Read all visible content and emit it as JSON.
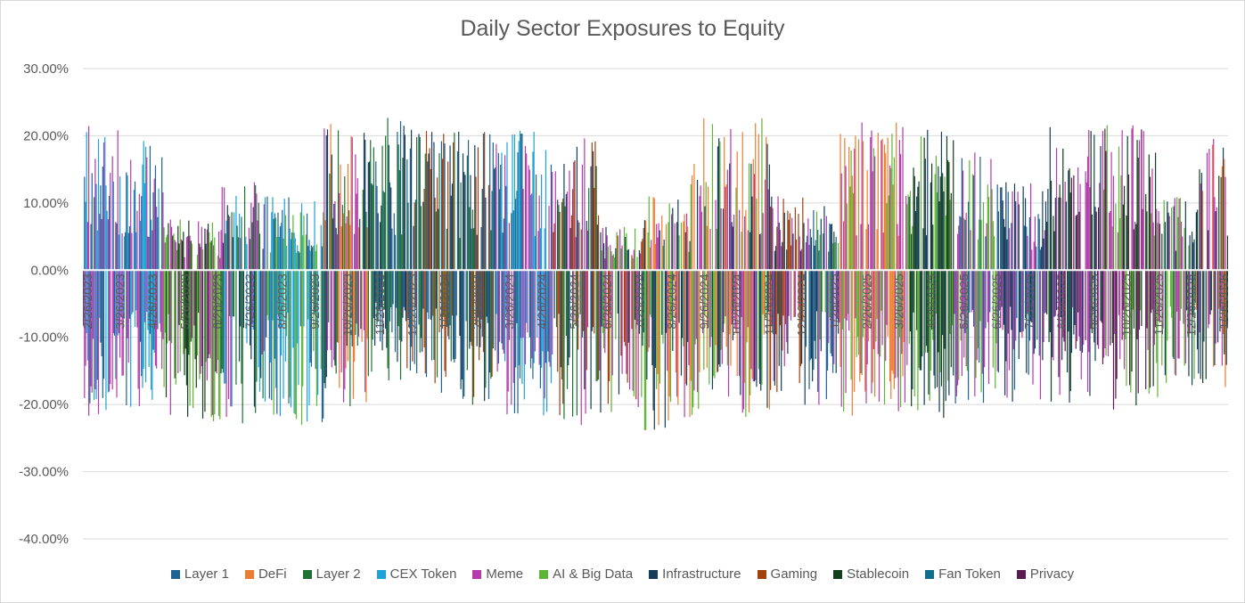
{
  "chart_data": {
    "type": "bar",
    "title": "Daily Sector Exposures to Equity",
    "xlabel": "",
    "ylabel": "",
    "ylim": [
      -0.4,
      0.3
    ],
    "yticks": [
      "30.00%",
      "20.00%",
      "10.00%",
      "0.00%",
      "-10.00%",
      "-20.00%",
      "-30.00%",
      "-40.00%"
    ],
    "ytick_values": [
      0.3,
      0.2,
      0.1,
      0.0,
      -0.1,
      -0.2,
      -0.3,
      -0.4
    ],
    "x_tick_labels": [
      "2/26/2023",
      "3/26/2023",
      "4/26/2023",
      "5/26/2023",
      "6/26/2023",
      "7/26/2023",
      "8/26/2023",
      "9/26/2023",
      "10/26/2023",
      "11/26/2023",
      "12/26/2023",
      "1/26/2024",
      "2/26/2024",
      "3/26/2024",
      "4/26/2024",
      "5/26/2024",
      "6/26/2024",
      "7/26/2024",
      "8/26/2024",
      "9/26/2024",
      "10/26/2024",
      "11/26/2024",
      "12/26/2024",
      "1/26/2025",
      "2/26/2025",
      "3/26/2025",
      "4/26/2025",
      "5/26/2025",
      "6/26/2025",
      "7/26/2025",
      "8/26/2025",
      "9/26/2025",
      "10/26/2025",
      "11/26/2025",
      "12/26/2025",
      "1/26/2026"
    ],
    "x_range": [
      "2/26/2023",
      "1/26/2026"
    ],
    "series": [
      {
        "name": "Layer 1",
        "color": "#1f6391"
      },
      {
        "name": "DeFi",
        "color": "#ed7d31"
      },
      {
        "name": "Layer 2",
        "color": "#1e7233"
      },
      {
        "name": "CEX Token",
        "color": "#1ea2d8"
      },
      {
        "name": "Meme",
        "color": "#b53bad"
      },
      {
        "name": "AI & Big Data",
        "color": "#5db535"
      },
      {
        "name": "Infrastructure",
        "color": "#153e5c"
      },
      {
        "name": "Gaming",
        "color": "#a1420f"
      },
      {
        "name": "Stablecoin",
        "color": "#133f1c"
      },
      {
        "name": "Fan Token",
        "color": "#0f6d8e"
      },
      {
        "name": "Privacy",
        "color": "#5c1a52"
      }
    ],
    "dominant_segments": [
      {
        "from": 0.0,
        "to": 0.03,
        "series": [
          0,
          3,
          4
        ],
        "pos": 0.2,
        "neg": -0.2
      },
      {
        "from": 0.03,
        "to": 0.07,
        "series": [
          3,
          0,
          4
        ],
        "pos": 0.19,
        "neg": -0.19
      },
      {
        "from": 0.07,
        "to": 0.12,
        "series": [
          5,
          8,
          4
        ],
        "pos": 0.07,
        "neg": -0.21
      },
      {
        "from": 0.12,
        "to": 0.16,
        "series": [
          2,
          6,
          4,
          3
        ],
        "pos": 0.12,
        "neg": -0.21
      },
      {
        "from": 0.16,
        "to": 0.21,
        "series": [
          3,
          5,
          0
        ],
        "pos": 0.1,
        "neg": -0.21
      },
      {
        "from": 0.21,
        "to": 0.25,
        "series": [
          6,
          2,
          4,
          1
        ],
        "pos": 0.2,
        "neg": -0.2
      },
      {
        "from": 0.25,
        "to": 0.28,
        "series": [
          6,
          0,
          2
        ],
        "pos": 0.21,
        "neg": -0.15
      },
      {
        "from": 0.28,
        "to": 0.32,
        "series": [
          0,
          6,
          2,
          7
        ],
        "pos": 0.19,
        "neg": -0.17
      },
      {
        "from": 0.32,
        "to": 0.36,
        "series": [
          2,
          0,
          7,
          6
        ],
        "pos": 0.19,
        "neg": -0.19
      },
      {
        "from": 0.36,
        "to": 0.41,
        "series": [
          3,
          4,
          0
        ],
        "pos": 0.19,
        "neg": -0.2
      },
      {
        "from": 0.41,
        "to": 0.45,
        "series": [
          4,
          2,
          6,
          7
        ],
        "pos": 0.18,
        "neg": -0.21
      },
      {
        "from": 0.45,
        "to": 0.49,
        "series": [
          6,
          4,
          5,
          7
        ],
        "pos": 0.06,
        "neg": -0.2
      },
      {
        "from": 0.49,
        "to": 0.53,
        "series": [
          5,
          4,
          6,
          1
        ],
        "pos": 0.1,
        "neg": -0.22
      },
      {
        "from": 0.53,
        "to": 0.6,
        "series": [
          4,
          5,
          6,
          1
        ],
        "pos": 0.21,
        "neg": -0.2
      },
      {
        "from": 0.6,
        "to": 0.63,
        "series": [
          6,
          4,
          7
        ],
        "pos": 0.1,
        "neg": -0.17
      },
      {
        "from": 0.63,
        "to": 0.66,
        "series": [
          0,
          6,
          4,
          5
        ],
        "pos": 0.09,
        "neg": -0.19
      },
      {
        "from": 0.66,
        "to": 0.72,
        "series": [
          4,
          5,
          1
        ],
        "pos": 0.2,
        "neg": -0.2
      },
      {
        "from": 0.72,
        "to": 0.76,
        "series": [
          8,
          5,
          6
        ],
        "pos": 0.19,
        "neg": -0.2
      },
      {
        "from": 0.76,
        "to": 0.8,
        "series": [
          4,
          5,
          0
        ],
        "pos": 0.16,
        "neg": -0.19
      },
      {
        "from": 0.8,
        "to": 0.84,
        "series": [
          6,
          0,
          4
        ],
        "pos": 0.12,
        "neg": -0.18
      },
      {
        "from": 0.84,
        "to": 0.89,
        "series": [
          8,
          10,
          6,
          4
        ],
        "pos": 0.2,
        "neg": -0.18
      },
      {
        "from": 0.89,
        "to": 0.94,
        "series": [
          8,
          10,
          5,
          4
        ],
        "pos": 0.2,
        "neg": -0.19
      },
      {
        "from": 0.94,
        "to": 0.97,
        "series": [
          6,
          4,
          5
        ],
        "pos": 0.1,
        "neg": -0.17
      },
      {
        "from": 0.97,
        "to": 1.0,
        "series": [
          8,
          6,
          4,
          1
        ],
        "pos": 0.19,
        "neg": -0.16
      }
    ],
    "legend_position": "bottom",
    "grid": true
  }
}
